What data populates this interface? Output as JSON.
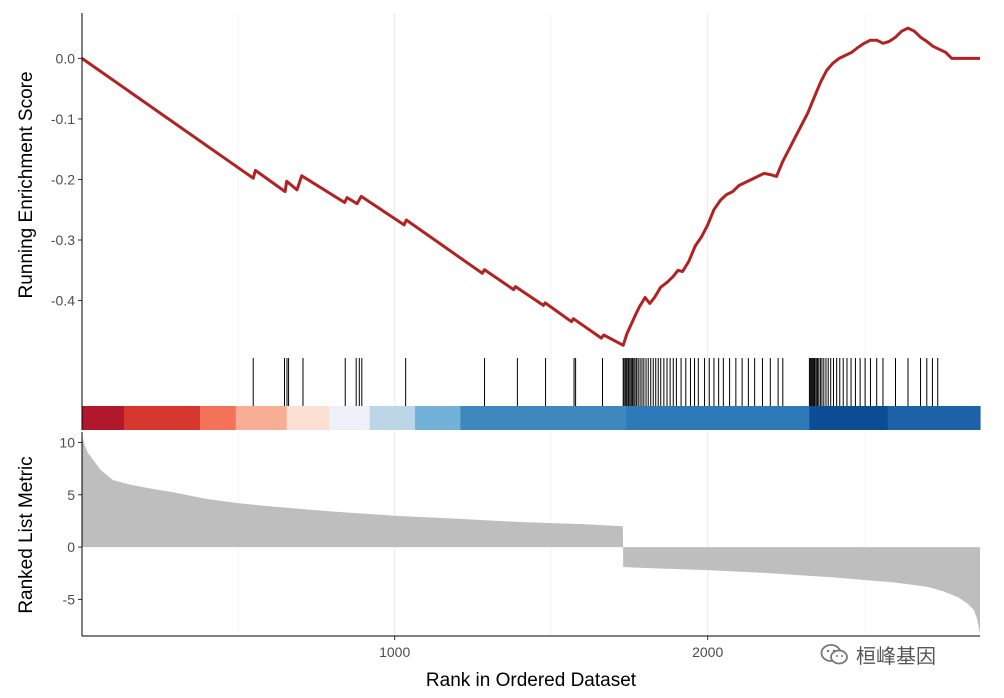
{
  "chart_data": [
    {
      "type": "line",
      "panel": "running-enrichment-score",
      "ylabel": "Running Enrichment Score",
      "xlim": [
        1,
        2870
      ],
      "ylim": [
        -0.49,
        0.075
      ],
      "yticks": [
        0.0,
        -0.1,
        -0.2,
        -0.3,
        -0.4
      ],
      "ytick_labels": [
        "0.0",
        "-0.1",
        "-0.2",
        "-0.3",
        "-0.4"
      ],
      "grid": true,
      "color": "#B22222",
      "series": [
        {
          "x": [
            1,
            548,
            555,
            650,
            655,
            688,
            703,
            840,
            848,
            880,
            893,
            1030,
            1037,
            1280,
            1287,
            1380,
            1386,
            1475,
            1481,
            1565,
            1571,
            1660,
            1668,
            1730,
            1742,
            1755,
            1768,
            1782,
            1800,
            1815,
            1830,
            1850,
            1870,
            1890,
            1905,
            1920,
            1940,
            1960,
            1980,
            2000,
            2020,
            2040,
            2060,
            2080,
            2100,
            2120,
            2140,
            2160,
            2180,
            2200,
            2220,
            2240,
            2260,
            2280,
            2300,
            2320,
            2340,
            2360,
            2380,
            2400,
            2420,
            2440,
            2460,
            2480,
            2500,
            2520,
            2540,
            2560,
            2580,
            2600,
            2620,
            2640,
            2660,
            2680,
            2700,
            2720,
            2740,
            2760,
            2780,
            2870
          ],
          "y": [
            0.0,
            -0.198,
            -0.185,
            -0.22,
            -0.203,
            -0.217,
            -0.194,
            -0.238,
            -0.23,
            -0.24,
            -0.228,
            -0.275,
            -0.267,
            -0.355,
            -0.349,
            -0.382,
            -0.377,
            -0.408,
            -0.404,
            -0.435,
            -0.43,
            -0.462,
            -0.457,
            -0.474,
            -0.455,
            -0.44,
            -0.425,
            -0.41,
            -0.395,
            -0.405,
            -0.395,
            -0.378,
            -0.37,
            -0.36,
            -0.35,
            -0.352,
            -0.335,
            -0.31,
            -0.295,
            -0.275,
            -0.25,
            -0.235,
            -0.225,
            -0.22,
            -0.21,
            -0.205,
            -0.2,
            -0.195,
            -0.19,
            -0.192,
            -0.195,
            -0.17,
            -0.15,
            -0.13,
            -0.11,
            -0.09,
            -0.065,
            -0.04,
            -0.02,
            -0.008,
            0.0,
            0.005,
            0.01,
            0.018,
            0.025,
            0.03,
            0.03,
            0.025,
            0.028,
            0.035,
            0.045,
            0.05,
            0.045,
            0.035,
            0.028,
            0.02,
            0.015,
            0.01,
            0.0,
            0.0
          ]
        }
      ]
    },
    {
      "type": "rug",
      "panel": "gene-hits",
      "x": [
        548,
        648,
        656,
        661,
        707,
        842,
        877,
        887,
        895,
        1035,
        1287,
        1392,
        1482,
        1573,
        1578,
        1664,
        1730,
        1733,
        1737,
        1741,
        1745,
        1748,
        1752,
        1756,
        1760,
        1764,
        1768,
        1773,
        1778,
        1784,
        1790,
        1796,
        1803,
        1810,
        1818,
        1826,
        1834,
        1842,
        1850,
        1860,
        1870,
        1880,
        1890,
        1900,
        1915,
        1930,
        1945,
        1958,
        1970,
        1990,
        2005,
        2020,
        2035,
        2050,
        2070,
        2090,
        2110,
        2130,
        2150,
        2175,
        2200,
        2225,
        2240,
        2325,
        2328,
        2331,
        2334,
        2337,
        2340,
        2343,
        2347,
        2351,
        2355,
        2360,
        2365,
        2371,
        2378,
        2385,
        2393,
        2402,
        2412,
        2422,
        2433,
        2445,
        2458,
        2472,
        2487,
        2503,
        2520,
        2540,
        2560,
        2600,
        2640,
        2680,
        2700,
        2718,
        2735
      ]
    },
    {
      "type": "heatmap",
      "panel": "rank-color-strip",
      "segments": [
        {
          "from": 1,
          "to": 135,
          "color": "#B2182B"
        },
        {
          "from": 135,
          "to": 378,
          "color": "#D6372E"
        },
        {
          "from": 378,
          "to": 492,
          "color": "#F4725A"
        },
        {
          "from": 492,
          "to": 655,
          "color": "#F7AE94"
        },
        {
          "from": 655,
          "to": 790,
          "color": "#FBE0D3"
        },
        {
          "from": 790,
          "to": 920,
          "color": "#EEF0FA"
        },
        {
          "from": 920,
          "to": 1065,
          "color": "#BCD6E7"
        },
        {
          "from": 1065,
          "to": 1210,
          "color": "#73B1D8"
        },
        {
          "from": 1210,
          "to": 1740,
          "color": "#3E88BE"
        },
        {
          "from": 1740,
          "to": 2325,
          "color": "#2E7AB8"
        },
        {
          "from": 2325,
          "to": 2575,
          "color": "#0B4C94"
        },
        {
          "from": 2575,
          "to": 2870,
          "color": "#1E63A8"
        }
      ]
    },
    {
      "type": "area",
      "panel": "ranked-list-metric",
      "xlabel": "Rank in Ordered Dataset",
      "ylabel": "Ranked List Metric",
      "xlim": [
        1,
        2870
      ],
      "ylim": [
        -8.5,
        11
      ],
      "yticks": [
        10,
        5,
        0,
        -5
      ],
      "ytick_labels": [
        "10",
        "5",
        "0",
        "-5"
      ],
      "xticks": [
        1000,
        2000
      ],
      "xtick_labels": [
        "1000",
        "2000"
      ],
      "grid": true,
      "color": "#BEBEBE",
      "x": [
        1,
        5,
        10,
        20,
        40,
        60,
        100,
        150,
        200,
        300,
        400,
        500,
        600,
        800,
        1000,
        1200,
        1400,
        1600,
        1729,
        1730,
        1800,
        2000,
        2200,
        2400,
        2600,
        2700,
        2750,
        2800,
        2830,
        2850,
        2860,
        2865,
        2870
      ],
      "y": [
        10.8,
        10.2,
        9.7,
        9.0,
        8.2,
        7.4,
        6.4,
        6.0,
        5.7,
        5.2,
        4.6,
        4.2,
        3.9,
        3.4,
        3.0,
        2.7,
        2.4,
        2.2,
        2.0,
        -1.9,
        -2.0,
        -2.2,
        -2.5,
        -2.9,
        -3.4,
        -3.8,
        -4.2,
        -4.8,
        -5.4,
        -6.0,
        -6.8,
        -7.5,
        -8.3
      ]
    }
  ],
  "watermark": {
    "text": "桓峰基因",
    "icon": "wechat-logo-icon"
  }
}
